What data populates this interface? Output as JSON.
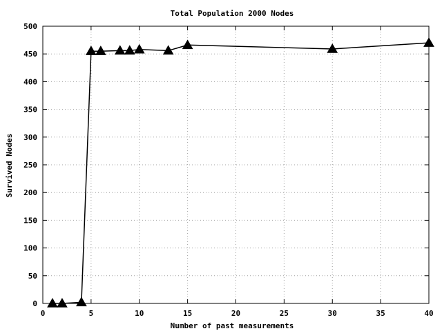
{
  "chart_data": {
    "type": "line",
    "title": "Total Population 2000 Nodes",
    "xlabel": "Number of past measurements",
    "ylabel": "Survived Nodes",
    "xlim": [
      0,
      40
    ],
    "ylim": [
      0,
      500
    ],
    "xticks": [
      0,
      5,
      10,
      15,
      20,
      25,
      30,
      35,
      40
    ],
    "yticks": [
      0,
      50,
      100,
      150,
      200,
      250,
      300,
      350,
      400,
      450,
      500
    ],
    "grid": true,
    "legend": "none",
    "series": [
      {
        "marker": "filled-triangle",
        "color": "#000000",
        "points": [
          {
            "x": 1,
            "y": 0
          },
          {
            "x": 2,
            "y": 0
          },
          {
            "x": 4,
            "y": 2
          },
          {
            "x": 5,
            "y": 455
          },
          {
            "x": 6,
            "y": 455
          },
          {
            "x": 8,
            "y": 456
          },
          {
            "x": 9,
            "y": 456
          },
          {
            "x": 10,
            "y": 458
          },
          {
            "x": 13,
            "y": 456
          },
          {
            "x": 15,
            "y": 466
          },
          {
            "x": 30,
            "y": 459
          },
          {
            "x": 40,
            "y": 470
          }
        ]
      }
    ]
  }
}
